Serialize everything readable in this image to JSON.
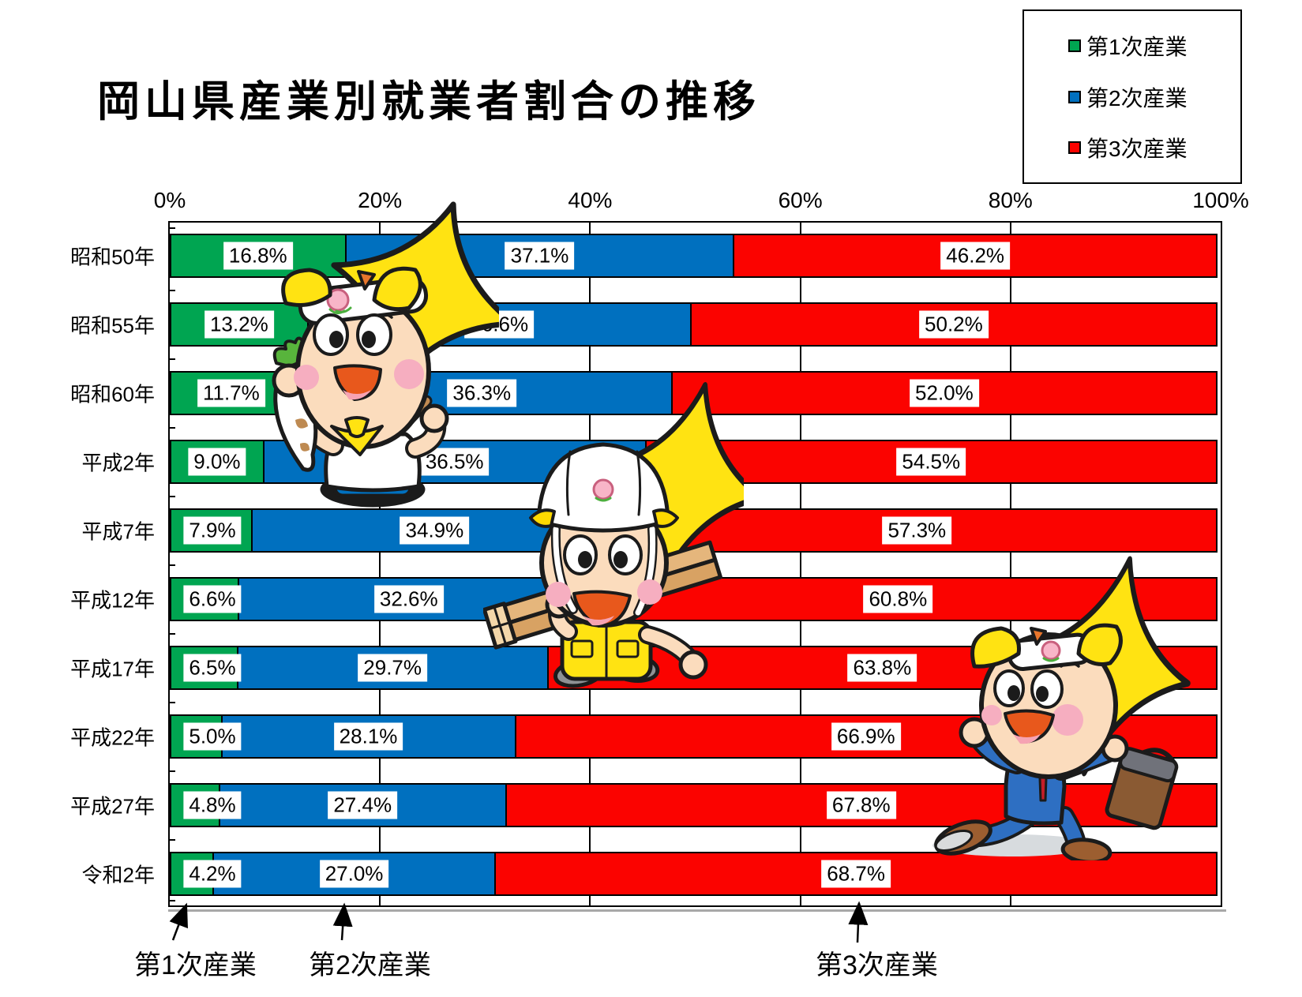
{
  "title": "岡山県産業別就業者割合の推移",
  "legend": {
    "position": "top-right",
    "items": [
      {
        "label": "第1次産業",
        "color": "#00A551"
      },
      {
        "label": "第2次産業",
        "color": "#0070BF"
      },
      {
        "label": "第3次産業",
        "color": "#FB0300"
      }
    ]
  },
  "chart_data": {
    "type": "bar",
    "orientation": "horizontal",
    "stacked": true,
    "title": "岡山県産業別就業者割合の推移",
    "categories": [
      "昭和50年",
      "昭和55年",
      "昭和60年",
      "平成2年",
      "平成7年",
      "平成12年",
      "平成17年",
      "平成22年",
      "平成27年",
      "令和2年"
    ],
    "series": [
      {
        "name": "第1次産業",
        "color": "#00A551",
        "values": [
          16.8,
          13.2,
          11.7,
          9.0,
          7.9,
          6.6,
          6.5,
          5.0,
          4.8,
          4.2
        ]
      },
      {
        "name": "第2次産業",
        "color": "#0070BF",
        "values": [
          37.1,
          36.6,
          36.3,
          36.5,
          34.9,
          32.6,
          29.7,
          28.1,
          27.4,
          27.0
        ]
      },
      {
        "name": "第3次産業",
        "color": "#FB0300",
        "values": [
          46.2,
          50.2,
          52.0,
          54.5,
          57.3,
          60.8,
          63.8,
          66.9,
          67.8,
          68.7
        ]
      }
    ],
    "x_axis": {
      "min": 0,
      "max": 100,
      "ticks": [
        "0%",
        "20%",
        "40%",
        "60%",
        "80%",
        "100%"
      ],
      "position": "top"
    },
    "data_label_format": "{value}%",
    "grid": true,
    "legend_position": "top-right"
  },
  "annotations": {
    "items": [
      {
        "label": "第1次産業"
      },
      {
        "label": "第2次産業"
      },
      {
        "label": "第3次産業"
      }
    ]
  },
  "mascots": [
    {
      "id": "farmer",
      "depicts": "child mascot with star, holding daikon radish and rake"
    },
    {
      "id": "construction-worker",
      "depicts": "child mascot with star, white helmet, carrying lumber"
    },
    {
      "id": "businessman",
      "depicts": "child mascot with star, blue suit, running with briefcase"
    }
  ]
}
